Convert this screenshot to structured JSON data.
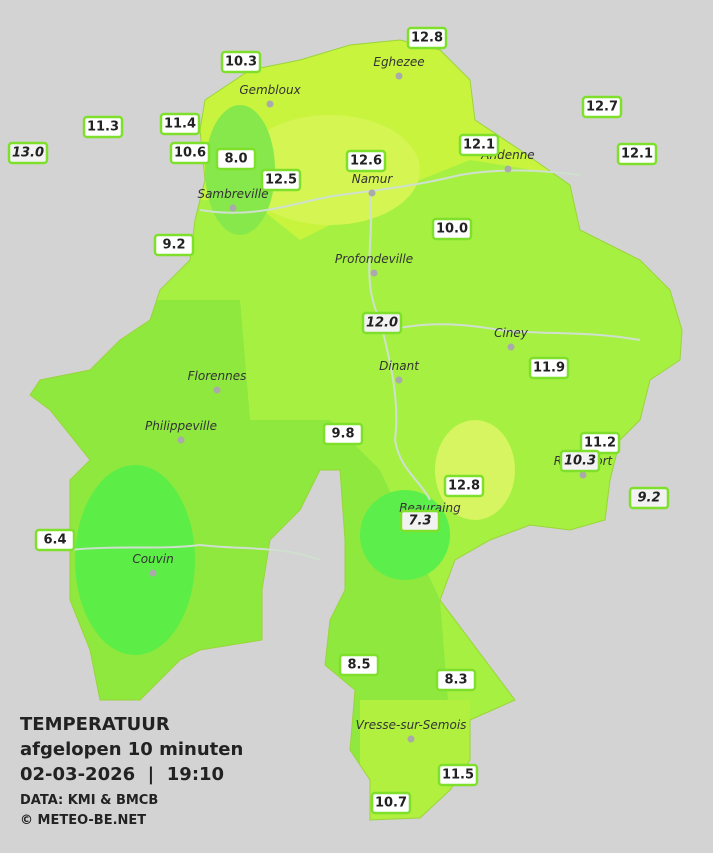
{
  "header": {
    "title": "TEMPERATUUR",
    "subtitle": "afgelopen 10 minuten",
    "datetime": "02-03-2026  |  19:10",
    "source": "DATA: KMI & BMCB",
    "copyright": "© METEO-BE.NET"
  },
  "places": [
    "Eghezee",
    "Gembloux",
    "Andenne",
    "Namur",
    "Sambreville",
    "Profondeville",
    "Ciney",
    "Dinant",
    "Florennes",
    "Philippeville",
    "Rochefort",
    "Beauraing",
    "Couvin",
    "Vresse-sur-Semois"
  ],
  "stations": [
    {
      "temp": "12.8"
    },
    {
      "temp": "10.3"
    },
    {
      "temp": "12.7"
    },
    {
      "temp": "11.3"
    },
    {
      "temp": "11.4"
    },
    {
      "temp": "13.0",
      "italic": true
    },
    {
      "temp": "10.6"
    },
    {
      "temp": "8.0"
    },
    {
      "temp": "12.1"
    },
    {
      "temp": "12.1"
    },
    {
      "temp": "12.6"
    },
    {
      "temp": "12.5"
    },
    {
      "temp": "10.0"
    },
    {
      "temp": "9.2"
    },
    {
      "temp": "12.0",
      "italic": true
    },
    {
      "temp": "11.9"
    },
    {
      "temp": "9.8"
    },
    {
      "temp": "11.2"
    },
    {
      "temp": "10.3",
      "italic": true
    },
    {
      "temp": "9.2",
      "italic": true
    },
    {
      "temp": "12.8"
    },
    {
      "temp": "7.3",
      "italic": true
    },
    {
      "temp": "6.4"
    },
    {
      "temp": "8.5"
    },
    {
      "temp": "8.3"
    },
    {
      "temp": "11.5"
    },
    {
      "temp": "10.7"
    }
  ]
}
